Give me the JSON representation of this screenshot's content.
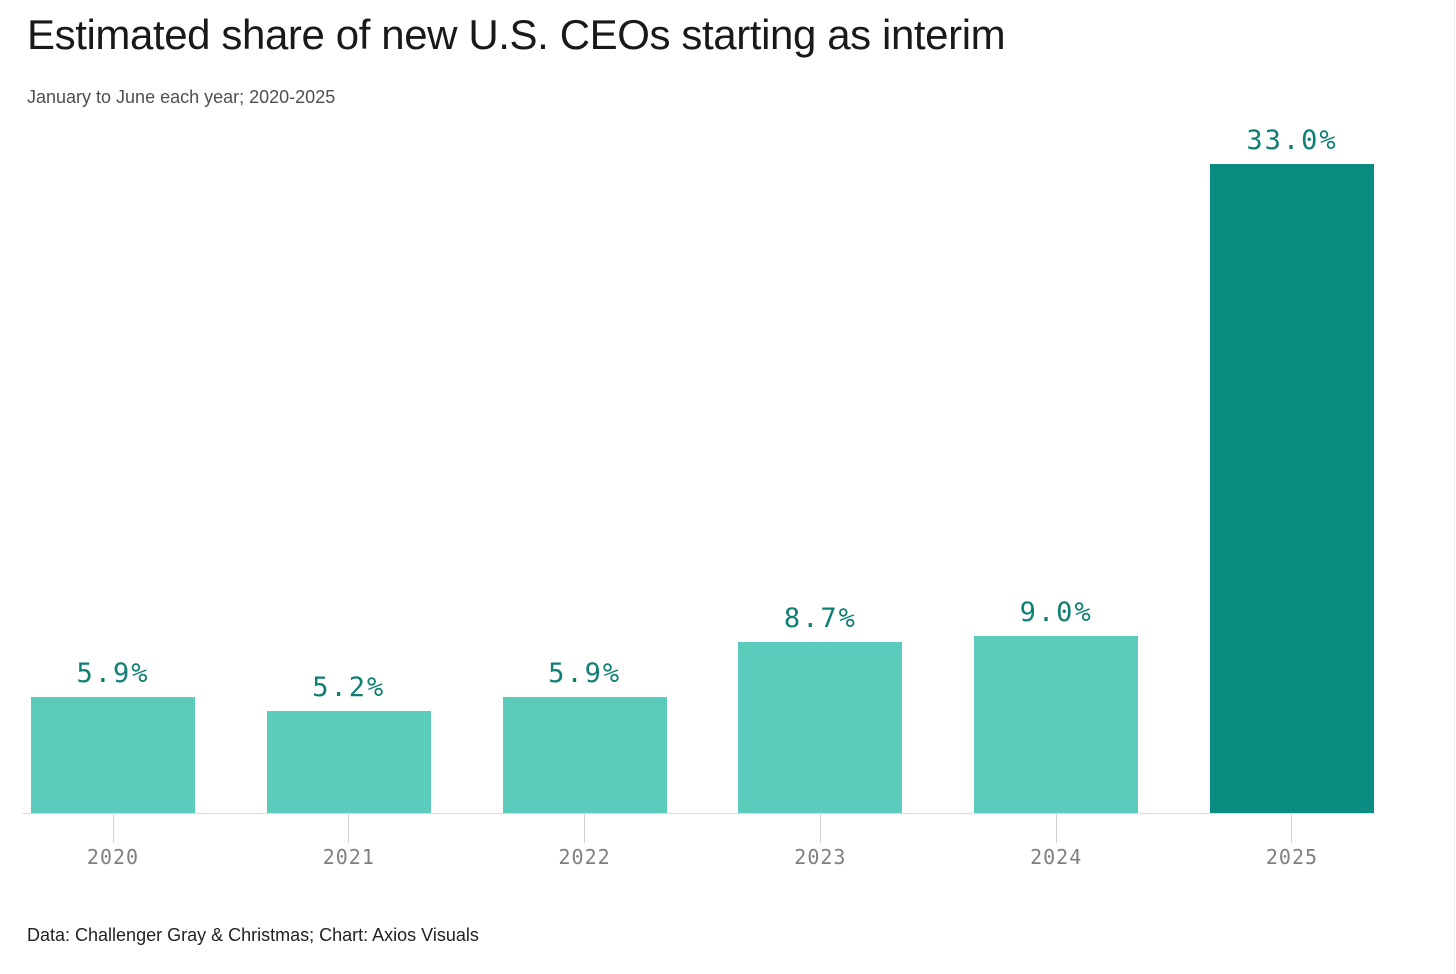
{
  "page": {
    "title": "Estimated share of new U.S. CEOs starting as interim",
    "subtitle": "January to June each year; 2020-2025",
    "source": "Data: Challenger Gray & Christmas; Chart: Axios Visuals"
  },
  "chart_data": {
    "type": "bar",
    "title": "Estimated share of new U.S. CEOs starting as interim",
    "subtitle": "January to June each year; 2020-2025",
    "source": "Data: Challenger Gray & Christmas; Chart: Axios Visuals",
    "categories": [
      "2020",
      "2021",
      "2022",
      "2023",
      "2024",
      "2025"
    ],
    "values": [
      5.9,
      5.2,
      5.9,
      8.7,
      9.0,
      33.0
    ],
    "value_labels": [
      "5.9%",
      "5.2%",
      "5.9%",
      "8.7%",
      "9.0%",
      "33.0%"
    ],
    "xlabel": "",
    "ylabel": "",
    "ylim": [
      0,
      33
    ],
    "grid": false,
    "legend": false,
    "highlight_index": 5,
    "colors": {
      "bar_default": "#5bccbc",
      "bar_highlight": "#0a8c81",
      "value_label": "#0e7f73",
      "axis_label": "#7f7f7f",
      "axis_line": "#dcdcdc",
      "tick": "#d4d4d4"
    }
  }
}
